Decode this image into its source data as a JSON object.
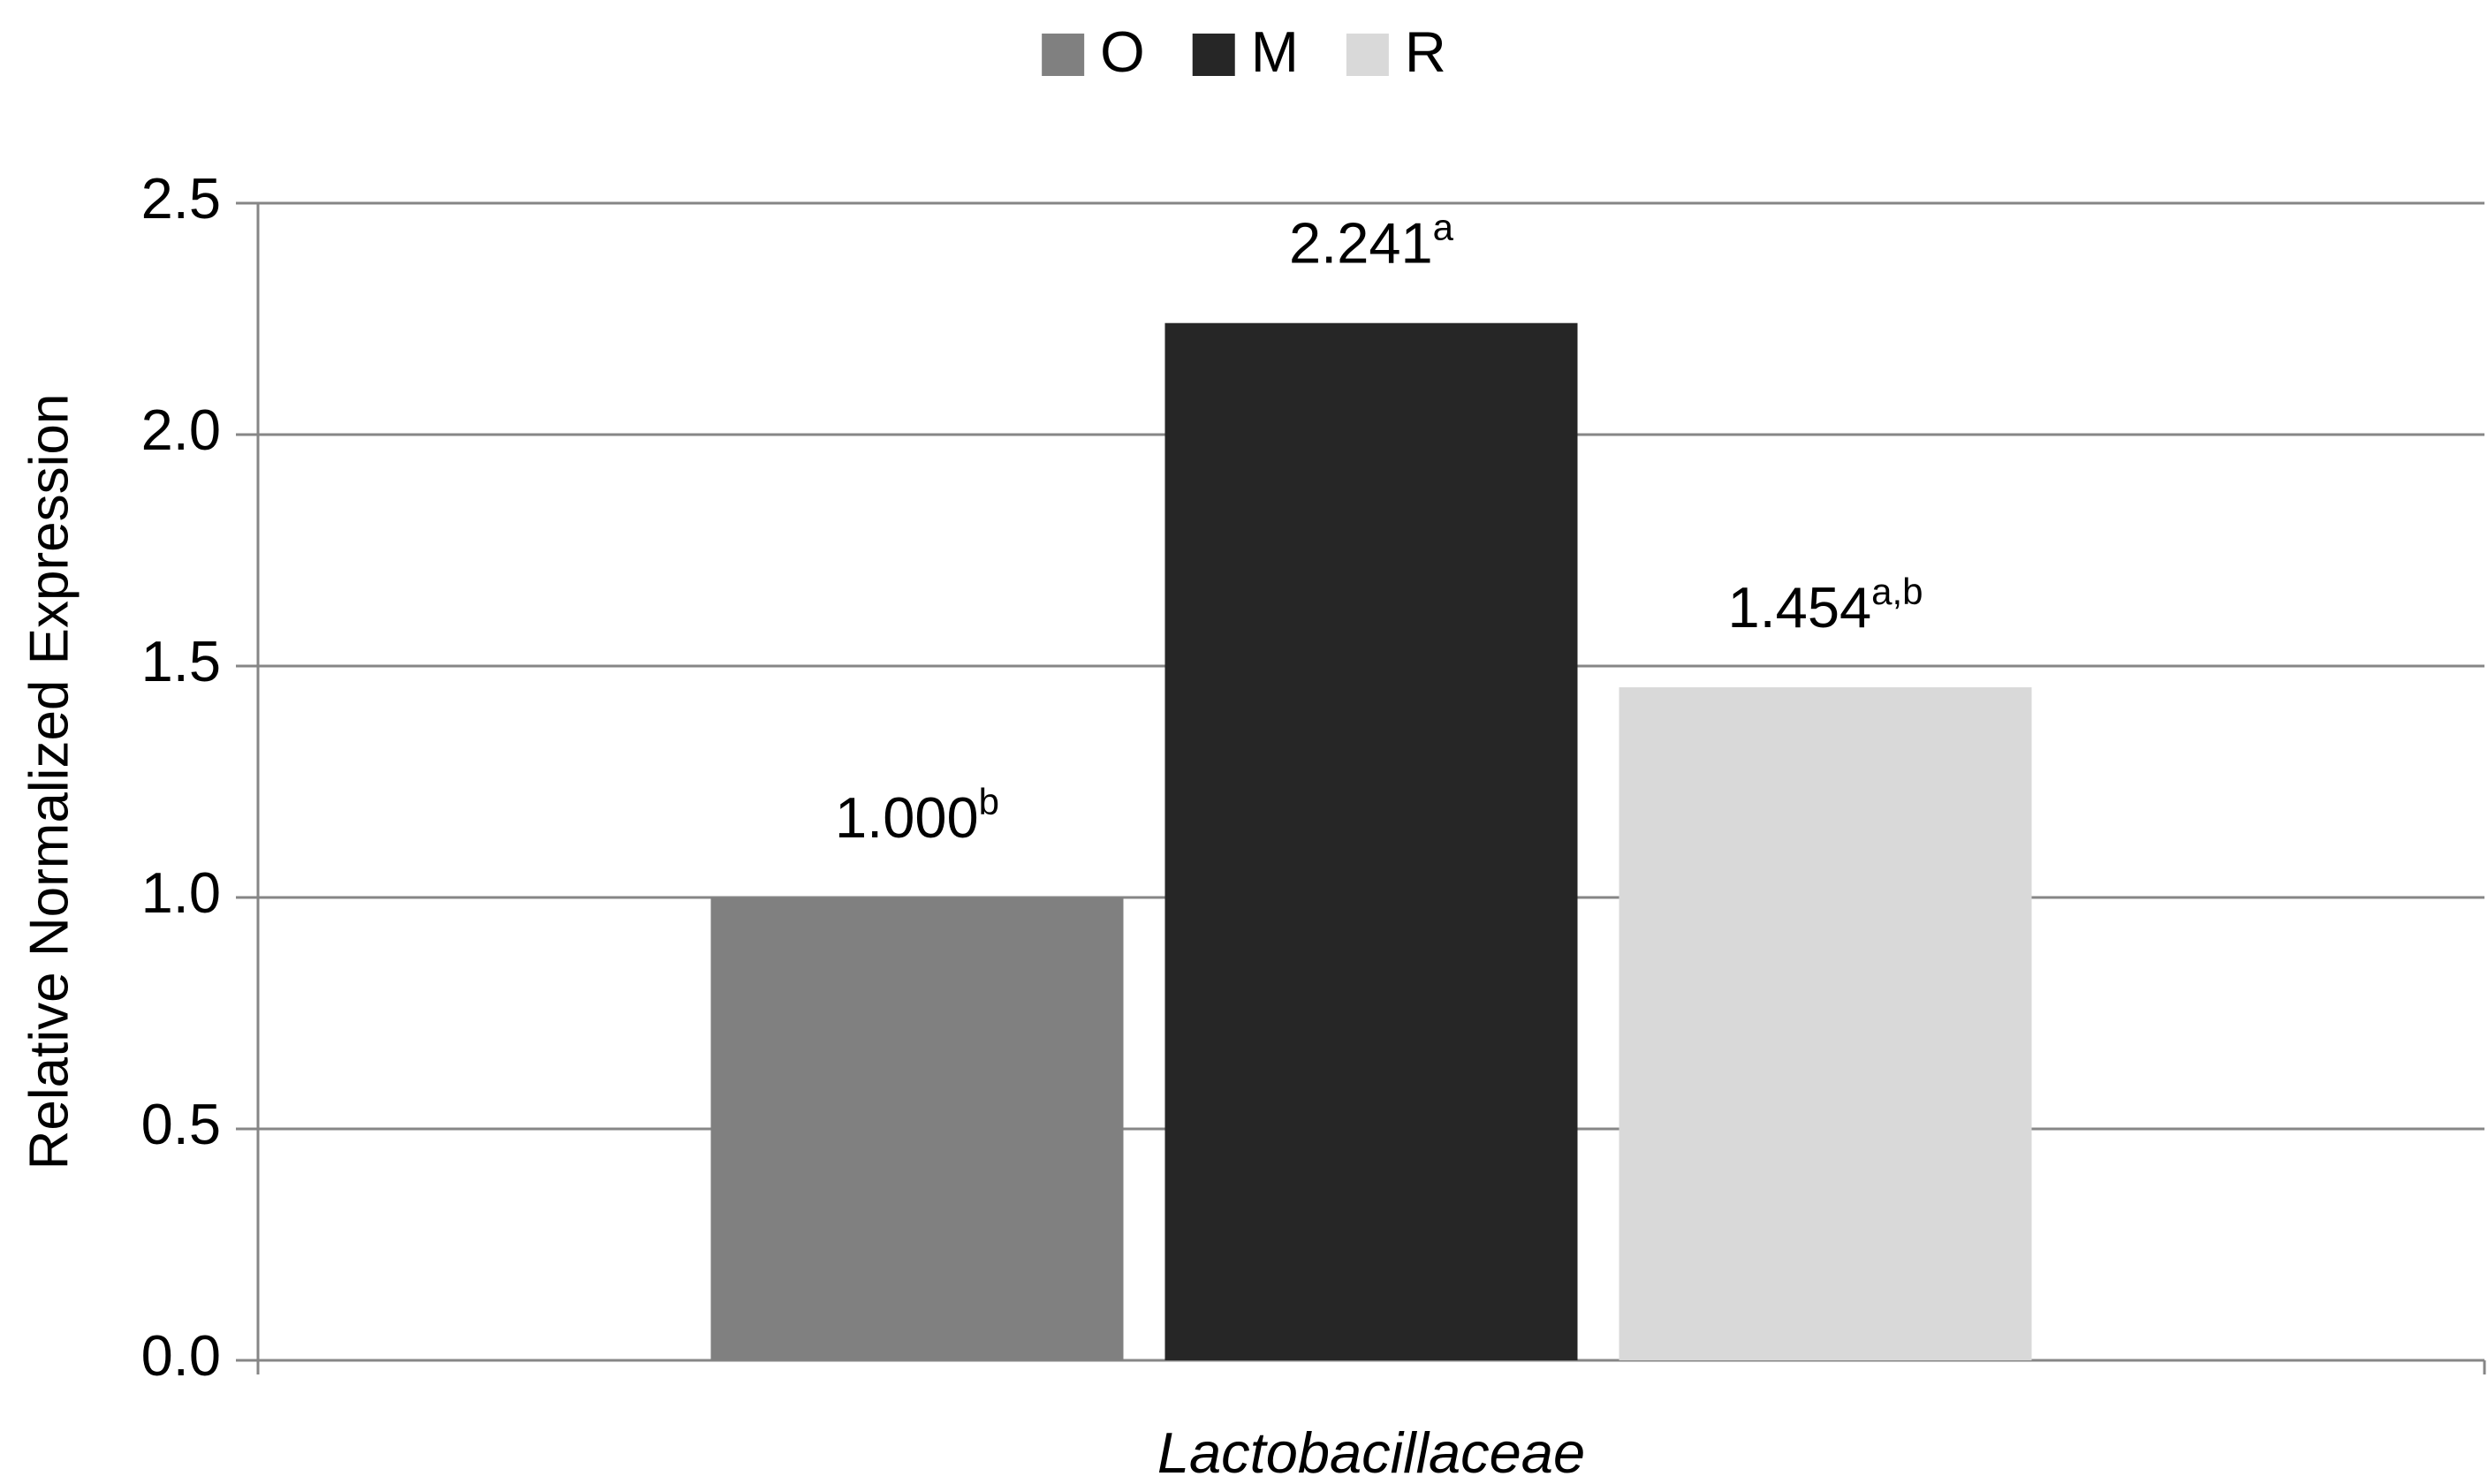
{
  "chart_data": {
    "type": "bar",
    "categories": [
      "Lactobacillaceae"
    ],
    "y_axis_label": "Relative Normalized Expression",
    "series": [
      {
        "name": "O",
        "color": "#808080",
        "values": [
          1.0
        ],
        "value_labels": [
          "1.000"
        ],
        "superscripts": [
          "b"
        ]
      },
      {
        "name": "M",
        "color": "#262626",
        "values": [
          2.241
        ],
        "value_labels": [
          "2.241"
        ],
        "superscripts": [
          "a"
        ]
      },
      {
        "name": "R",
        "color": "#d9d9d9",
        "values": [
          1.454
        ],
        "value_labels": [
          "1.454"
        ],
        "superscripts": [
          "a,b"
        ]
      }
    ],
    "ylim": [
      0,
      2.5
    ],
    "yticks": [
      {
        "value": 0,
        "label": "0.0"
      },
      {
        "value": 0.5,
        "label": "0.5"
      },
      {
        "value": 1,
        "label": "1.0"
      },
      {
        "value": 1.5,
        "label": "1.5"
      },
      {
        "value": 2,
        "label": "2.0"
      },
      {
        "value": 2.5,
        "label": "2.5"
      }
    ],
    "grid": true,
    "legend": "top"
  }
}
